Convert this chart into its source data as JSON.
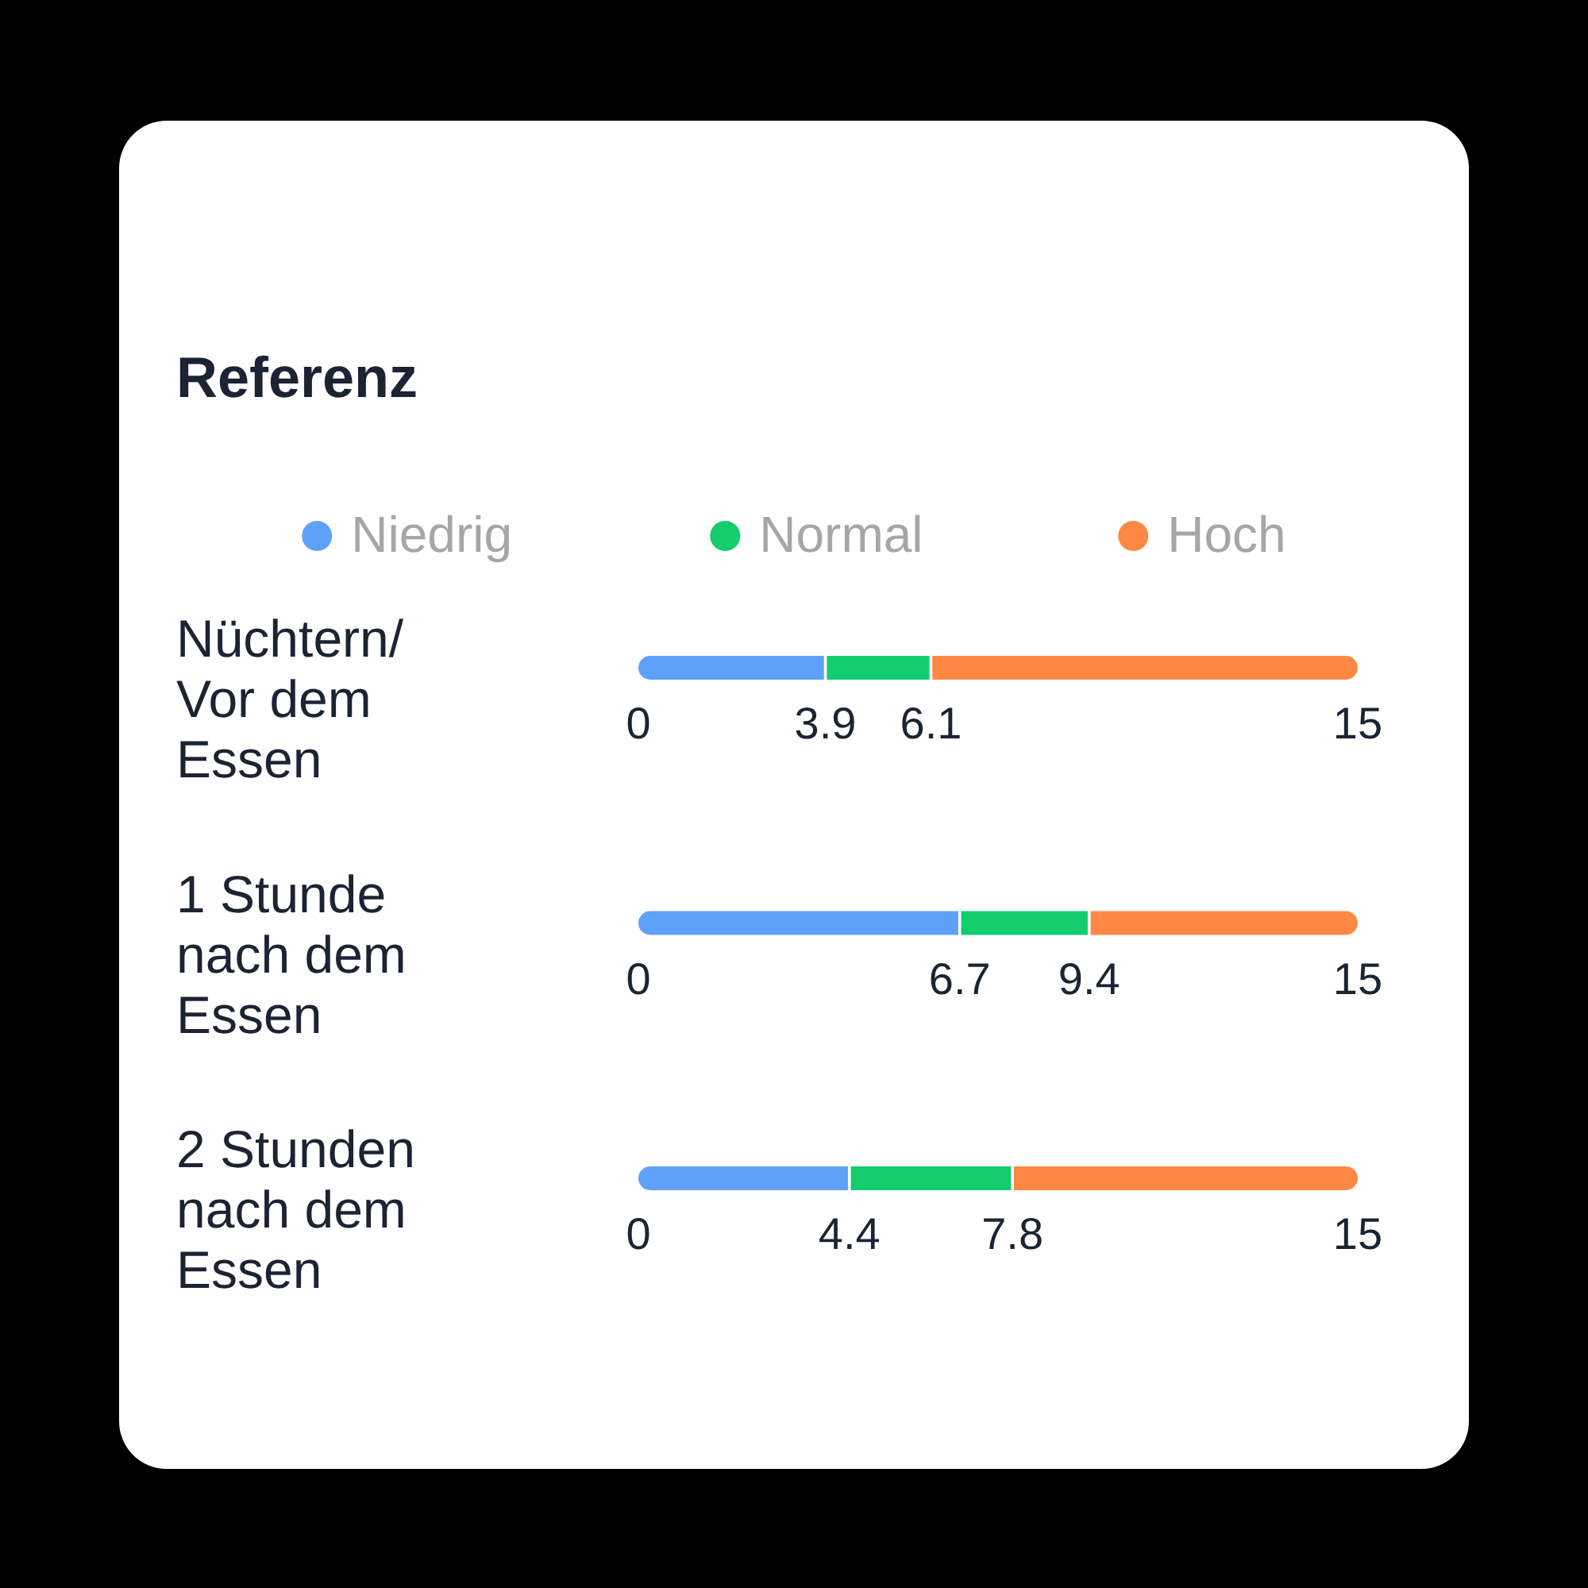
{
  "chart_data": [
    {
      "type": "bar",
      "orientation": "horizontal",
      "stacked": true,
      "title": "Referenz",
      "legend": "top",
      "categories": [
        "Nüchtern/ Vor dem Essen"
      ],
      "series": [
        {
          "name": "Niedrig",
          "color": "#5fa0fa",
          "values": [
            3.9
          ]
        },
        {
          "name": "Normal",
          "color": "#12cc6e",
          "values": [
            2.2
          ]
        },
        {
          "name": "Hoch",
          "color": "#ff8844",
          "values": [
            8.9
          ]
        }
      ],
      "xlim": [
        0,
        15
      ],
      "xticks": [
        0,
        3.9,
        6.1,
        15
      ]
    },
    {
      "type": "bar",
      "orientation": "horizontal",
      "stacked": true,
      "categories": [
        "1 Stunde nach dem Essen"
      ],
      "series": [
        {
          "color": "#5fa0fa",
          "values": [
            6.7
          ]
        },
        {
          "color": "#12cc6e",
          "values": [
            2.7
          ]
        },
        {
          "color": "#ff8844",
          "values": [
            5.6
          ]
        }
      ],
      "xlim": [
        0,
        15
      ],
      "xticks": [
        0,
        6.7,
        9.4,
        15
      ]
    },
    {
      "type": "bar",
      "orientation": "horizontal",
      "stacked": true,
      "categories": [
        "2 Stunden nach dem Essen"
      ],
      "series": [
        {
          "color": "#5fa0fa",
          "values": [
            4.4
          ]
        },
        {
          "color": "#12cc6e",
          "values": [
            3.4
          ]
        },
        {
          "color": "#ff8844",
          "values": [
            7.2
          ]
        }
      ],
      "xlim": [
        0,
        15
      ],
      "xticks": [
        0,
        4.4,
        7.8,
        15
      ]
    }
  ]
}
